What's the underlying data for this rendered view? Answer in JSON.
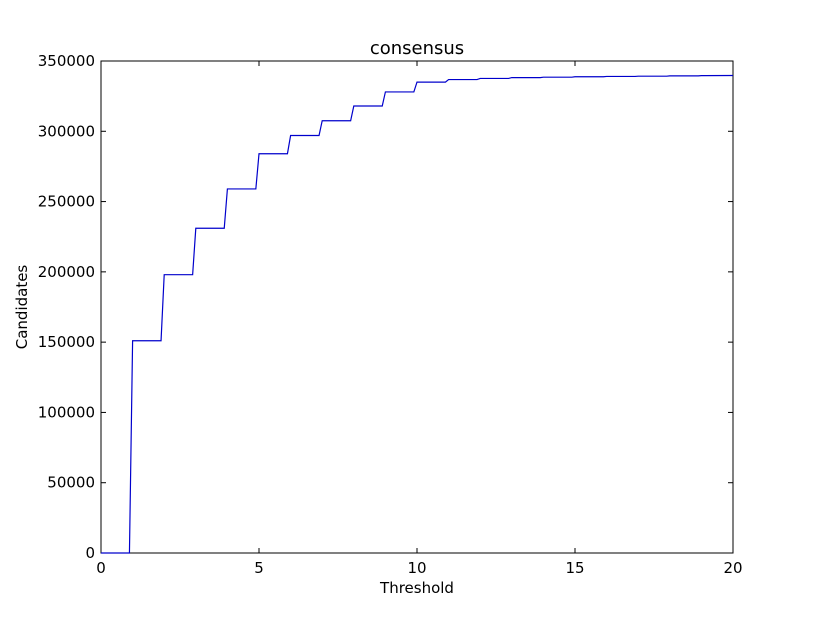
{
  "chart_data": {
    "type": "line",
    "title": "consensus",
    "xlabel": "Threshold",
    "ylabel": "Candidates",
    "xlim": [
      0,
      20
    ],
    "ylim": [
      0,
      350000
    ],
    "x_ticks": [
      0,
      5,
      10,
      15,
      20
    ],
    "x_tick_labels": [
      "0",
      "5",
      "10",
      "15",
      "20"
    ],
    "y_ticks": [
      0,
      50000,
      100000,
      150000,
      200000,
      250000,
      300000,
      350000
    ],
    "y_tick_labels": [
      "0",
      "50000",
      "100000",
      "150000",
      "200000",
      "250000",
      "300000",
      "350000"
    ],
    "grid": false,
    "legend": "none",
    "line_color": "#0000cc",
    "series": [
      {
        "x": [
          0,
          0.9,
          1.0,
          1.1,
          1.9,
          2.0,
          2.1,
          2.9,
          3.0,
          3.1,
          3.9,
          4.0,
          4.1,
          4.9,
          5.0,
          5.1,
          5.9,
          6.0,
          6.1,
          6.9,
          7.0,
          7.1,
          7.9,
          8.0,
          8.1,
          8.9,
          9.0,
          9.1,
          9.9,
          10.0,
          10.1,
          10.9,
          11.0,
          11.1,
          11.9,
          12.0,
          12.1,
          12.9,
          13.0,
          13.1,
          13.9,
          14.0,
          14.1,
          14.9,
          15.0,
          15.1,
          15.9,
          16.0,
          16.1,
          16.9,
          17.0,
          17.1,
          17.9,
          18.0,
          18.1,
          18.9,
          19.0,
          19.1,
          20.0
        ],
        "y": [
          0,
          0,
          151000,
          151000,
          151000,
          198000,
          198000,
          198000,
          231000,
          231000,
          231000,
          259000,
          259000,
          259000,
          284000,
          284000,
          284000,
          297000,
          297000,
          297000,
          307500,
          307500,
          307500,
          318000,
          318000,
          318000,
          328000,
          328000,
          328000,
          335000,
          335000,
          335000,
          336800,
          336800,
          336800,
          337600,
          337600,
          337600,
          338200,
          338200,
          338200,
          338500,
          338500,
          338500,
          338800,
          338800,
          338800,
          339000,
          339000,
          339000,
          339200,
          339200,
          339200,
          339400,
          339400,
          339400,
          339600,
          339600,
          339700
        ]
      }
    ]
  }
}
